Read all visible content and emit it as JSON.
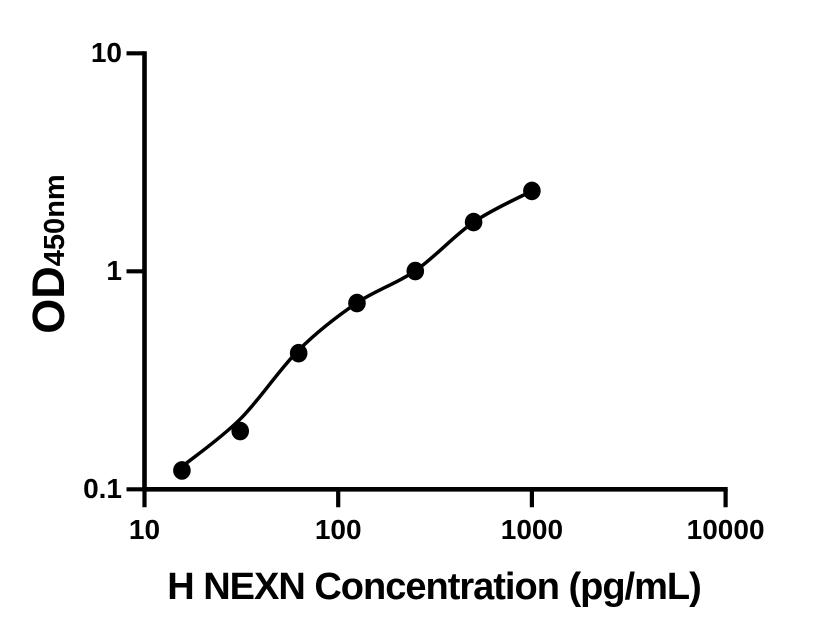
{
  "figure": {
    "background": "#ffffff",
    "ink_color": "#000000"
  },
  "chart_data": {
    "type": "scatter",
    "title": "",
    "xlabel": "H NEXN Concentration (pg/mL)",
    "ylabel": "OD",
    "ylabel_subscript": "450nm",
    "x_scale": "log",
    "y_scale": "log",
    "xlim": [
      10,
      10000
    ],
    "ylim": [
      0.1,
      10
    ],
    "grid": false,
    "legend": null,
    "x_ticks": [
      {
        "value": 10,
        "label": "10"
      },
      {
        "value": 100,
        "label": "100"
      },
      {
        "value": 1000,
        "label": "1000"
      },
      {
        "value": 10000,
        "label": "10000"
      }
    ],
    "y_ticks": [
      {
        "value": 0.1,
        "label": "0.1"
      },
      {
        "value": 1,
        "label": "1"
      },
      {
        "value": 10,
        "label": "10"
      }
    ],
    "series": [
      {
        "name": "standard-curve-points",
        "marker": "circle",
        "color": "#000000",
        "points": [
          {
            "x": 15.6,
            "y": 0.122
          },
          {
            "x": 31.2,
            "y": 0.185
          },
          {
            "x": 62.5,
            "y": 0.421
          },
          {
            "x": 125,
            "y": 0.715
          },
          {
            "x": 250,
            "y": 1.003
          },
          {
            "x": 500,
            "y": 1.682
          },
          {
            "x": 1000,
            "y": 2.337
          }
        ]
      }
    ],
    "fit_curve": {
      "name": "fitted-standard-curve",
      "color": "#000000",
      "x": [
        15.6,
        31.2,
        62.5,
        125,
        250,
        500,
        1000
      ],
      "y": [
        0.127,
        0.21,
        0.435,
        0.717,
        1.005,
        1.68,
        2.337
      ]
    }
  }
}
